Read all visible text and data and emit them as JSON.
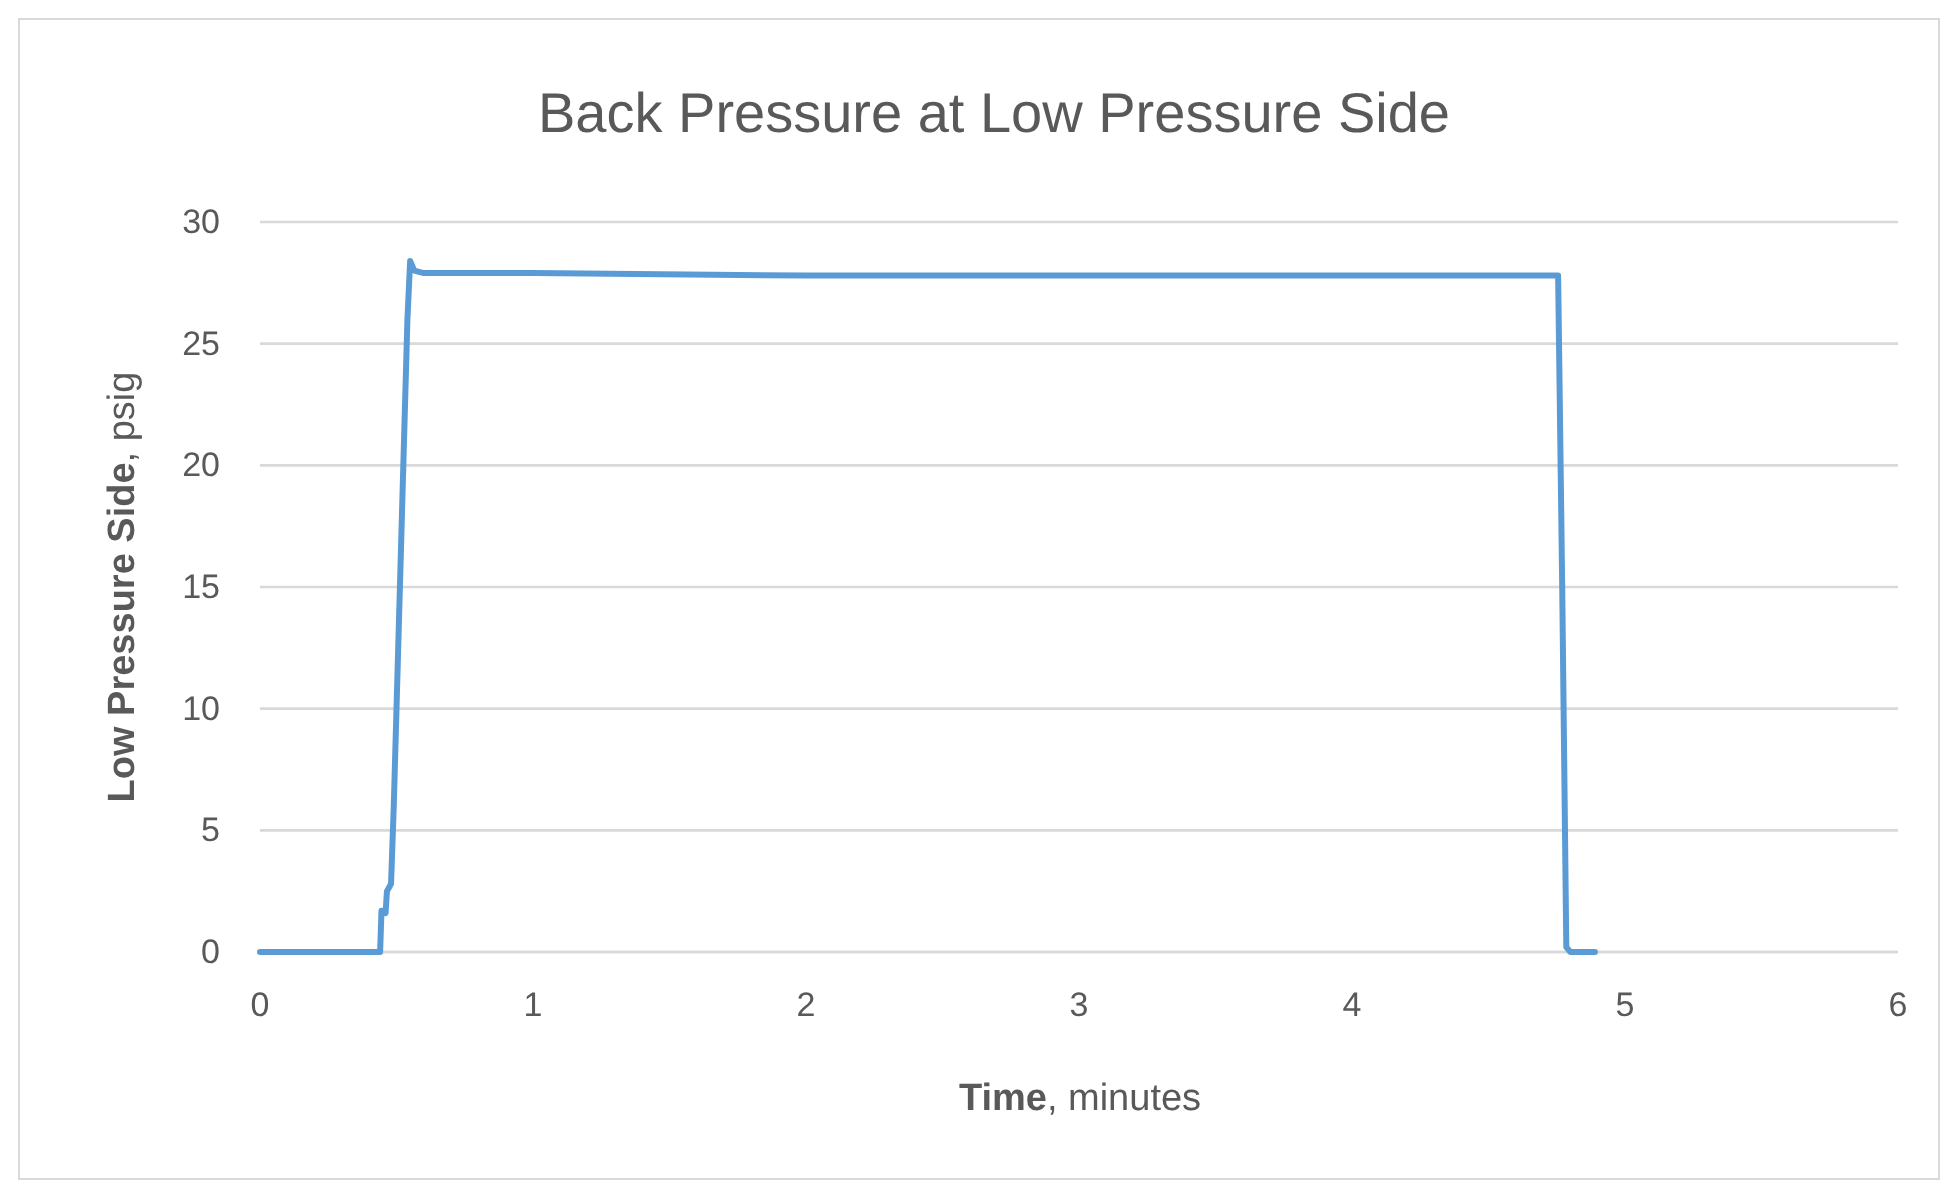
{
  "chart_data": {
    "type": "line",
    "title": "Back Pressure at Low Pressure Side",
    "xlabel": "Time, minutes",
    "ylabel": "Low Pressure Side, psig",
    "x": [
      0,
      0.2,
      0.44,
      0.445,
      0.46,
      0.465,
      0.48,
      0.49,
      0.5,
      0.52,
      0.54,
      0.55,
      0.565,
      0.6,
      1,
      2,
      3,
      4,
      4.755,
      4.77,
      4.785,
      4.8,
      4.89
    ],
    "series": [
      {
        "color": "#5b9bd5",
        "values": [
          0,
          0,
          0,
          1.7,
          1.6,
          2.5,
          2.8,
          6,
          10,
          18,
          26,
          28.4,
          28,
          27.9,
          27.9,
          27.8,
          27.8,
          27.8,
          27.8,
          15,
          0.2,
          0,
          0
        ]
      }
    ],
    "xlim": [
      0,
      6
    ],
    "xticks": [
      0,
      1,
      2,
      3,
      4,
      5,
      6
    ],
    "ylim": [
      0,
      30
    ],
    "yticks": [
      0,
      5,
      10,
      15,
      20,
      25,
      30
    ],
    "grid": "y",
    "marker": "none",
    "line_style": "solid"
  }
}
